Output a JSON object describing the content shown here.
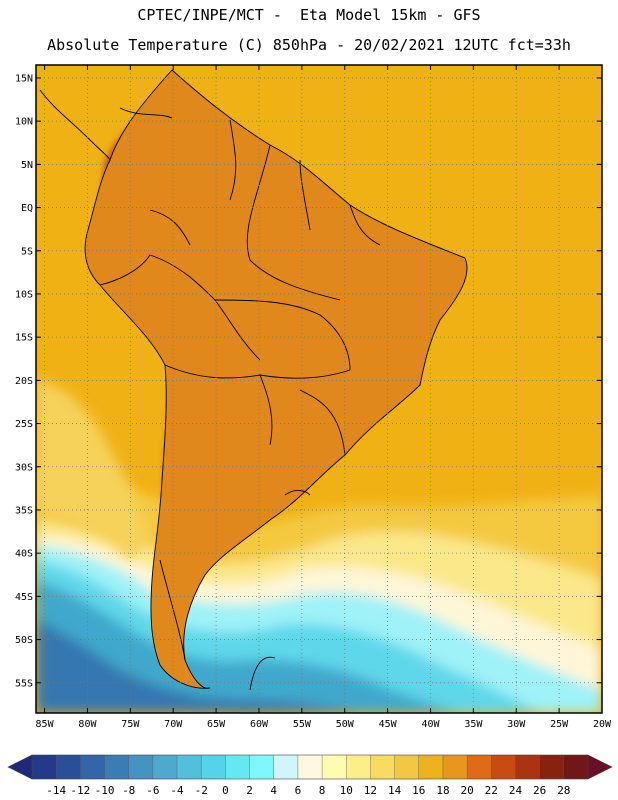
{
  "title": {
    "line1": "CPTEC/INPE/MCT -  Eta Model 15km - GFS",
    "line2": "Absolute Temperature (C) 850hPa - 20/02/2021 12UTC fct=33h"
  },
  "map": {
    "lon_min": -86,
    "lon_max": -20,
    "lat_min": -58.5,
    "lat_max": 16.5,
    "lat_ticks": [
      {
        "value": 15,
        "label": "15N"
      },
      {
        "value": 10,
        "label": "10N"
      },
      {
        "value": 5,
        "label": "5N"
      },
      {
        "value": 0,
        "label": "EQ"
      },
      {
        "value": -5,
        "label": "5S"
      },
      {
        "value": -10,
        "label": "10S"
      },
      {
        "value": -15,
        "label": "15S"
      },
      {
        "value": -20,
        "label": "20S"
      },
      {
        "value": -25,
        "label": "25S"
      },
      {
        "value": -30,
        "label": "30S"
      },
      {
        "value": -35,
        "label": "35S"
      },
      {
        "value": -40,
        "label": "40S"
      },
      {
        "value": -45,
        "label": "45S"
      },
      {
        "value": -50,
        "label": "50S"
      },
      {
        "value": -55,
        "label": "55S"
      }
    ],
    "lon_ticks": [
      {
        "value": -85,
        "label": "85W"
      },
      {
        "value": -80,
        "label": "80W"
      },
      {
        "value": -75,
        "label": "75W"
      },
      {
        "value": -70,
        "label": "70W"
      },
      {
        "value": -65,
        "label": "65W"
      },
      {
        "value": -60,
        "label": "60W"
      },
      {
        "value": -55,
        "label": "55W"
      },
      {
        "value": -50,
        "label": "50W"
      },
      {
        "value": -45,
        "label": "45W"
      },
      {
        "value": -40,
        "label": "40W"
      },
      {
        "value": -35,
        "label": "35W"
      },
      {
        "value": -30,
        "label": "30W"
      },
      {
        "value": -25,
        "label": "25W"
      },
      {
        "value": -20,
        "label": "20W"
      }
    ]
  },
  "colorbar": {
    "labels": [
      "-14",
      "-12",
      "-10",
      "-8",
      "-6",
      "-4",
      "-2",
      "0",
      "2",
      "4",
      "6",
      "8",
      "10",
      "12",
      "14",
      "16",
      "18",
      "20",
      "22",
      "24",
      "26",
      "28"
    ],
    "colors": [
      "#23398a",
      "#2a4f9a",
      "#3266a8",
      "#3a7db5",
      "#4593c2",
      "#4fa9cf",
      "#52bfdc",
      "#55d3e8",
      "#66e8f2",
      "#7ff7fb",
      "#cff6fb",
      "#fff8e0",
      "#fffbb0",
      "#fcef8a",
      "#f8dc62",
      "#f3c744",
      "#eeb21d",
      "#e8961c",
      "#df6a18",
      "#c94b14",
      "#a93510",
      "#87220f",
      "#701818"
    ]
  },
  "legend_title": "Absolute Temperature (C) 850hPa",
  "colors": {
    "ocean_base": "#f0b114",
    "land_base": "#e0881b"
  }
}
